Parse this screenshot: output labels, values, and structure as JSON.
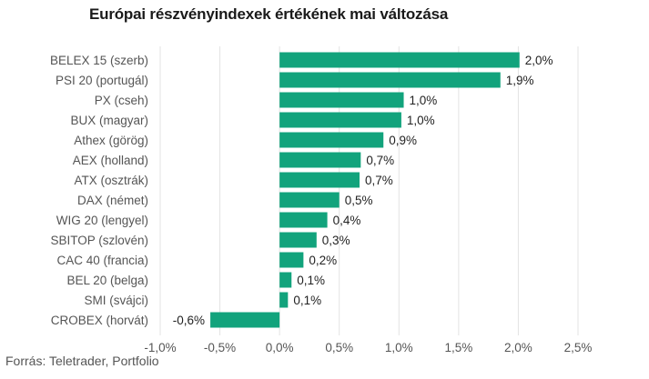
{
  "title": "Európai részvényindexek értékének mai változása",
  "source": "Forrás: Teletrader, Portfolio",
  "colors": {
    "bar": "#12a37c",
    "grid": "#e3e3e3",
    "text": "#555555"
  },
  "chart_data": {
    "type": "bar",
    "orientation": "horizontal",
    "title": "Európai részvényindexek értékének mai változása",
    "categories": [
      "BELEX 15 (szerb)",
      "PSI 20 (portugál)",
      "PX (cseh)",
      "BUX (magyar)",
      "Athex (görög)",
      "AEX (holland)",
      "ATX (osztrák)",
      "DAX (német)",
      "WIG 20 (lengyel)",
      "SBITOP (szlovén)",
      "CAC 40 (francia)",
      "BEL 20 (belga)",
      "SMI (svájci)",
      "CROBEX (horvát)"
    ],
    "values": [
      2.01,
      1.85,
      1.04,
      1.02,
      0.87,
      0.68,
      0.67,
      0.5,
      0.4,
      0.31,
      0.2,
      0.1,
      0.07,
      -0.58
    ],
    "value_labels": [
      "2,0%",
      "1,9%",
      "1,0%",
      "1,0%",
      "0,9%",
      "0,7%",
      "0,7%",
      "0,5%",
      "0,4%",
      "0,3%",
      "0,2%",
      "0,1%",
      "0,1%",
      "-0,6%"
    ],
    "xlim": [
      -1.0,
      2.5
    ],
    "xticks": [
      -1.0,
      -0.5,
      0.0,
      0.5,
      1.0,
      1.5,
      2.0,
      2.5
    ],
    "xtick_labels": [
      "-1,0%",
      "-0,5%",
      "0,0%",
      "0,5%",
      "1,0%",
      "1,5%",
      "2,0%",
      "2,5%"
    ],
    "grid": "vertical",
    "xlabel": "",
    "ylabel": ""
  }
}
